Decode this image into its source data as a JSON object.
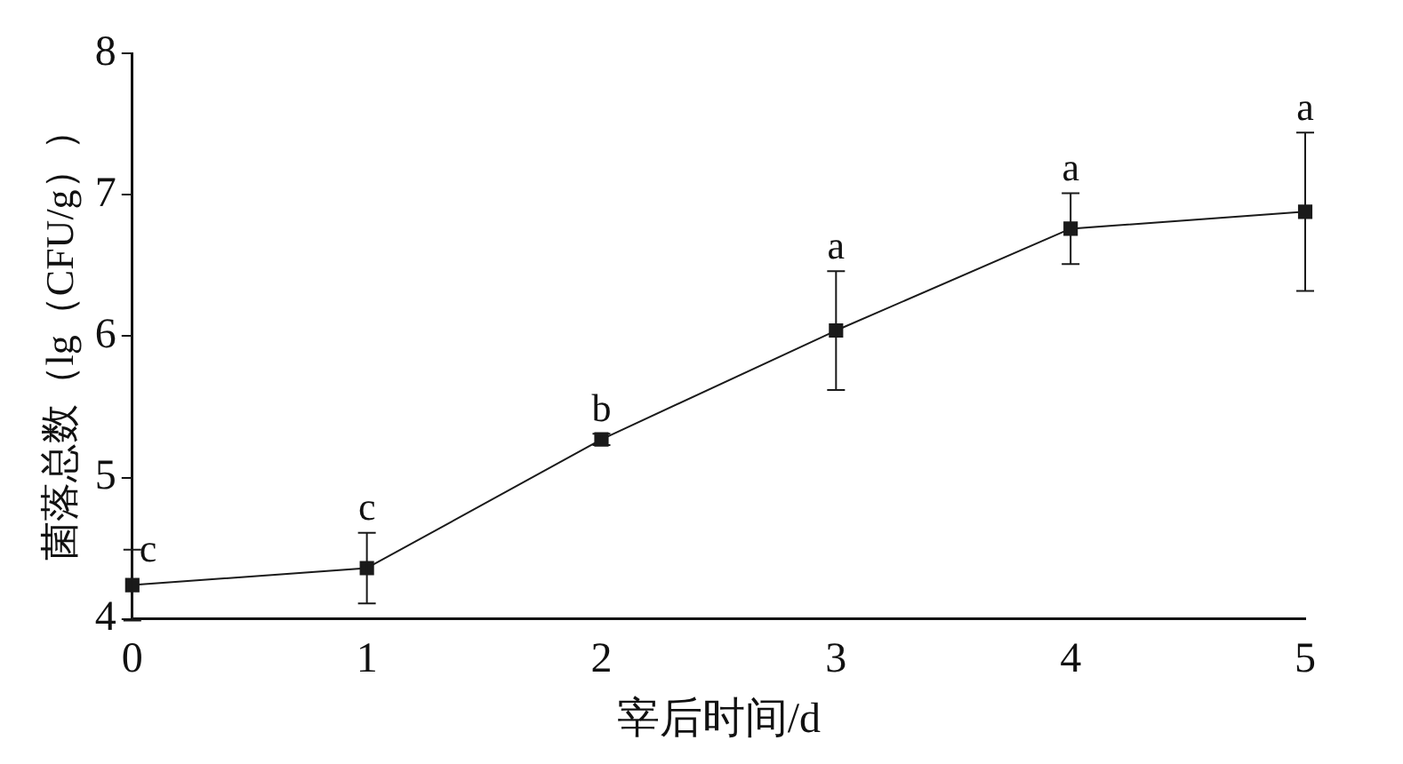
{
  "chart_data": {
    "type": "line",
    "xlabel": "宰后时间/d",
    "ylabel": "菌落总数（lg（CFU/g））",
    "x": [
      0,
      1,
      2,
      3,
      4,
      5
    ],
    "values": [
      4.24,
      4.36,
      5.27,
      6.04,
      6.76,
      6.88
    ],
    "errors": [
      0.25,
      0.25,
      0.04,
      0.42,
      0.25,
      0.56
    ],
    "color": "#1a1a1a",
    "marker": "square",
    "line_style": "solid",
    "grid": false,
    "legend": false,
    "xlim": [
      0,
      5
    ],
    "xticks": [
      0,
      1,
      2,
      3,
      4,
      5
    ],
    "ylim": [
      4,
      8
    ],
    "yticks": [
      4,
      5,
      6,
      7,
      8
    ],
    "annotations": [
      {
        "text": "c",
        "x": 0,
        "y": 4.49
      },
      {
        "text": "c",
        "x": 1,
        "y": 4.61
      },
      {
        "text": "b",
        "x": 2,
        "y": 5.31
      },
      {
        "text": "a",
        "x": 3,
        "y": 6.46
      },
      {
        "text": "a",
        "x": 4,
        "y": 7.01
      },
      {
        "text": "a",
        "x": 5,
        "y": 7.44
      }
    ]
  }
}
